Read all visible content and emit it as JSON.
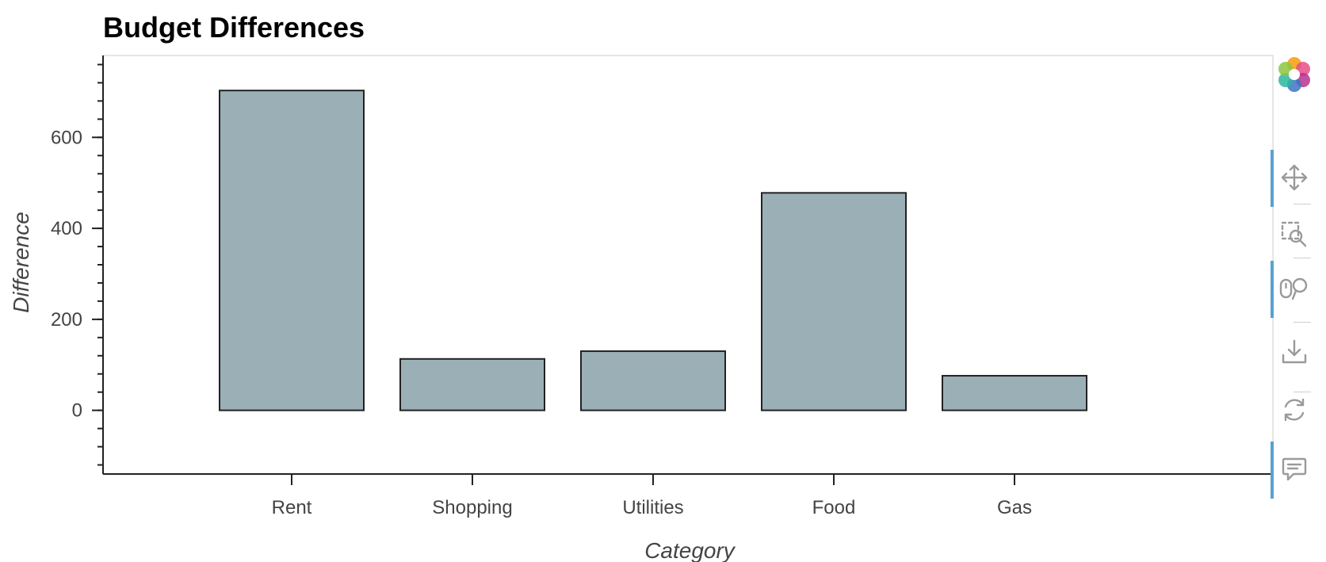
{
  "chart_data": {
    "type": "bar",
    "title": "Budget Differences",
    "xlabel": "Category",
    "ylabel": "Difference",
    "categories": [
      "Rent",
      "Shopping",
      "Utilities",
      "Food",
      "Gas"
    ],
    "values": [
      703,
      113,
      130,
      478,
      76
    ],
    "ylim": [
      -140,
      780
    ],
    "yticks": [
      0,
      200,
      400,
      600
    ],
    "grid": false,
    "bar_color": "#9bb0b6",
    "bar_outline": "#222222"
  },
  "toolbar": {
    "logo": "bokeh-logo-icon",
    "tools": [
      {
        "icon": "pan-icon",
        "active": true
      },
      {
        "icon": "box-zoom-icon",
        "active": false
      },
      {
        "icon": "wheel-zoom-icon",
        "active": true
      },
      {
        "icon": "save-icon",
        "active": false
      },
      {
        "icon": "reset-icon",
        "active": false
      },
      {
        "icon": "hover-icon",
        "active": true
      }
    ]
  }
}
